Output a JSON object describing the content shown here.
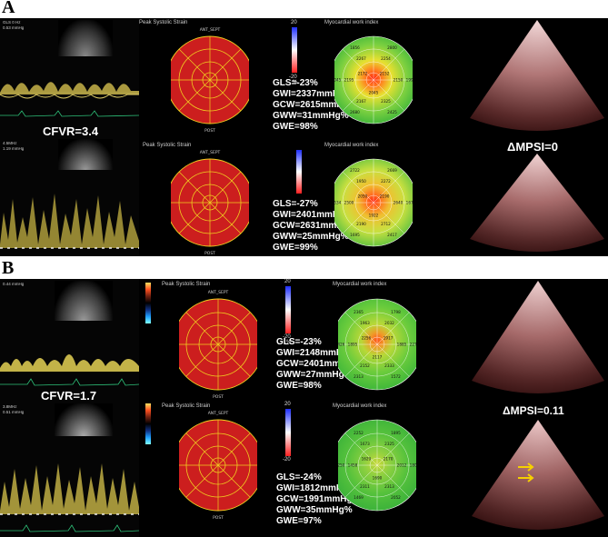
{
  "panels": [
    {
      "letter": "A",
      "cfvr": "CFVR=3.4",
      "mpsi": "ΔMPSI=0",
      "rows": [
        {
          "strain_title": "Peak Systolic Strain",
          "work_title": "Myocardial work index",
          "ant_sept": "ANT_SEPT",
          "post": "POST",
          "stats": [
            "GLS=-23%",
            "GWI=2337mmHg%",
            "GCW=2615mmHg%",
            "GWW=31mmHg%",
            "GWE=98%"
          ],
          "cbar_top": "20",
          "cbar_bottom": "-20",
          "cbar_unit": "%",
          "doppler_info": [
            "GLS 0 Hz",
            "0.53 mmHg"
          ],
          "work_values": [
            "2800",
            "1999",
            "2425",
            "2680",
            "2045",
            "1856",
            "2254",
            "2150",
            "2325",
            "2167",
            "2195",
            "2267",
            "2152",
            "2045",
            "2172"
          ]
        },
        {
          "strain_title": "Peak Systolic Strain",
          "work_title": "Myocardial work index",
          "ant_sept": "ANT_SEPT",
          "post": "POST",
          "stats": [
            "GLS=-27%",
            "GWI=2401mmHg%",
            "GCW=2631mmHg%",
            "GWW=25mmHg%",
            "GWE=99%"
          ],
          "cbar_top": "",
          "cbar_bottom": "",
          "cbar_unit": "",
          "doppler_info": [
            "4.5MHz",
            "1.19 mmHg"
          ],
          "work_values": [
            "2669",
            "1672",
            "2417",
            "1695",
            "2534",
            "2722",
            "2272",
            "2640",
            "2712",
            "2190",
            "2500",
            "1950",
            "2190",
            "1922",
            "2050"
          ]
        }
      ]
    },
    {
      "letter": "B",
      "cfvr": "CFVR=1.7",
      "mpsi": "ΔMPSI=0.11",
      "rows": [
        {
          "strain_title": "Peak Systolic Strain",
          "work_title": "Myocardial work index",
          "ant_sept": "ANT_SEPT",
          "post": "POST",
          "stats": [
            "GLS=-23%",
            "GWI=2148mmHg%",
            "GCW=2401mmHg%",
            "GWW=27mmHg%",
            "GWE=98%"
          ],
          "cbar_top": "20",
          "cbar_bottom": "-20",
          "cbar_unit": "%",
          "doppler_info": [
            "",
            "0.44 mmHg"
          ],
          "work_values": [
            "1798",
            "2271",
            "1572",
            "2313",
            "2426",
            "2365",
            "2032",
            "1885",
            "2333",
            "2152",
            "1895",
            "1963",
            "1917",
            "2117",
            "2256"
          ]
        },
        {
          "strain_title": "Peak Systolic Strain",
          "work_title": "Myocardial work index",
          "ant_sept": "ANT_SEPT",
          "post": "POST",
          "stats": [
            "GLS=-24%",
            "GWI=1812mmHg%",
            "GCW=1991mmHg%",
            "GWW=35mmHg%",
            "GWE=97%"
          ],
          "cbar_top": "20",
          "cbar_bottom": "-20",
          "cbar_unit": "",
          "doppler_info": [
            "3.8MHz",
            "0.51 mmHg"
          ],
          "work_values": [
            "1895",
            "1800",
            "2052",
            "1469",
            "2250",
            "2252",
            "2325",
            "2012",
            "2313",
            "2311",
            "1458",
            "1673",
            "2170",
            "1690",
            "1629"
          ]
        }
      ]
    }
  ]
}
